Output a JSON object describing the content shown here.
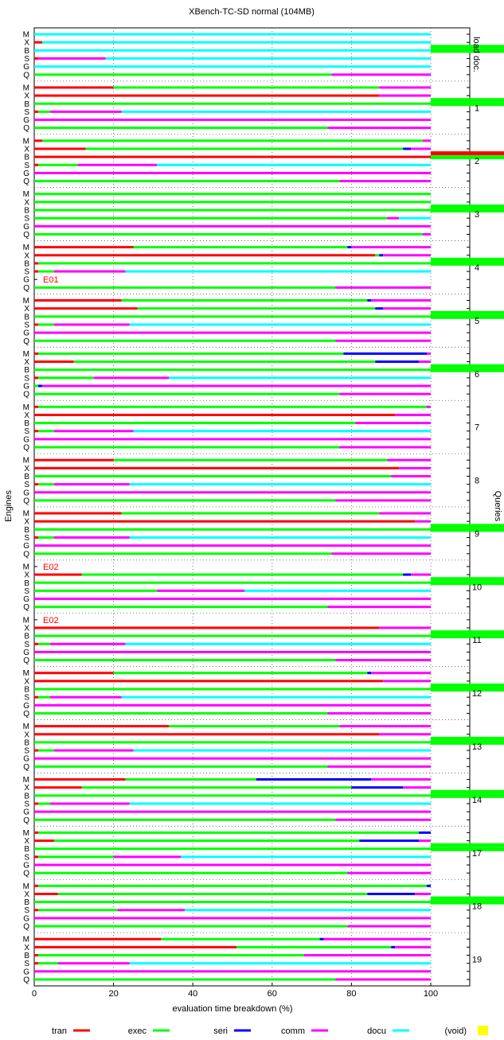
{
  "chart_data": {
    "type": "bar",
    "orientation": "horizontal",
    "stacked": true,
    "title": "XBench-TC-SD normal (104MB)",
    "xlabel": "evaluation time breakdown (%)",
    "ylabel_left": "Engines",
    "ylabel_right": "Queries",
    "xlim": [
      0,
      110
    ],
    "xticks": [
      0,
      20,
      40,
      60,
      80,
      100
    ],
    "grid": true,
    "legend_position": "bottom",
    "engines": [
      "M",
      "X",
      "B",
      "S",
      "G",
      "Q"
    ],
    "components": [
      {
        "name": "tran",
        "color": "#ff0000"
      },
      {
        "name": "exec",
        "color": "#00ff00"
      },
      {
        "name": "seri",
        "color": "#0000ff"
      },
      {
        "name": "comm",
        "color": "#ff00ff"
      },
      {
        "name": "docu",
        "color": "#00ffff"
      },
      {
        "name": "(void)",
        "color": "#ffff00"
      }
    ],
    "groups": [
      {
        "label": "load doc.",
        "rows": [
          [
            0,
            0,
            0,
            0,
            100
          ],
          [
            2,
            0,
            0,
            0,
            98
          ],
          [
            0,
            0,
            0,
            0,
            100
          ],
          [
            1,
            0,
            0,
            17,
            82
          ],
          [
            0,
            0,
            0,
            0,
            100
          ],
          [
            0,
            75,
            0,
            25,
            0
          ]
        ],
        "void": [
          [
            0,
            99,
            0,
            5
          ],
          [
            0,
            104,
            0,
            9
          ]
        ],
        "errors": []
      },
      {
        "label": "1",
        "rows": [
          [
            20,
            67,
            0,
            13,
            0
          ],
          [
            87,
            0,
            0,
            13,
            0
          ],
          [
            0,
            100,
            0,
            0,
            0
          ],
          [
            1,
            3,
            0,
            18,
            78
          ],
          [
            0,
            0,
            0,
            100,
            0
          ],
          [
            0,
            74,
            0,
            26,
            0
          ]
        ],
        "void": [
          [
            0,
            104,
            0,
            5
          ],
          [
            0,
            109,
            0,
            8
          ]
        ],
        "errors": []
      },
      {
        "label": "2",
        "rows": [
          [
            2,
            96,
            0,
            2,
            0
          ],
          [
            13,
            80,
            2,
            5,
            0
          ],
          [
            100,
            0,
            0,
            0,
            0
          ],
          [
            1,
            10,
            0,
            20,
            69
          ],
          [
            0,
            0,
            0,
            100,
            0
          ],
          [
            0,
            77,
            0,
            23,
            0
          ]
        ],
        "void": [
          [
            104,
            0,
            0,
            0
          ],
          [
            0,
            109,
            0,
            0
          ]
        ],
        "errors": []
      },
      {
        "label": "3",
        "rows": [
          [
            0,
            100,
            0,
            0,
            0
          ],
          [
            0,
            100,
            0,
            0,
            0
          ],
          [
            0,
            100,
            0,
            0,
            0
          ],
          [
            0,
            89,
            0,
            3,
            8
          ],
          [
            0,
            0,
            0,
            100,
            0
          ],
          [
            0,
            98,
            0,
            2,
            0
          ]
        ],
        "void": [
          [
            0,
            104,
            0,
            5
          ],
          [
            0,
            109,
            0,
            8
          ]
        ],
        "errors": []
      },
      {
        "label": "4",
        "rows": [
          [
            25,
            54,
            1,
            20,
            0
          ],
          [
            86,
            1,
            1,
            12,
            0
          ],
          [
            1,
            99,
            0,
            0,
            0
          ],
          [
            1,
            4,
            0,
            18,
            77
          ],
          [
            0,
            0,
            0,
            0,
            0
          ],
          [
            0,
            76,
            0,
            24,
            0
          ]
        ],
        "void": [
          [
            0,
            104,
            0,
            5
          ],
          [
            0,
            109,
            0,
            8
          ]
        ],
        "errors": [
          {
            "row": 4,
            "text": "E01"
          }
        ]
      },
      {
        "label": "5",
        "rows": [
          [
            22,
            62,
            1,
            15,
            0
          ],
          [
            26,
            60,
            2,
            12,
            0
          ],
          [
            0,
            100,
            0,
            0,
            0
          ],
          [
            1,
            4,
            0,
            19,
            76
          ],
          [
            0,
            0,
            0,
            100,
            0
          ],
          [
            0,
            76,
            0,
            24,
            0
          ]
        ],
        "void": [
          [
            0,
            104,
            0,
            5
          ],
          [
            0,
            109,
            0,
            8
          ]
        ],
        "errors": []
      },
      {
        "label": "6",
        "rows": [
          [
            1,
            77,
            21,
            1,
            0
          ],
          [
            10,
            76,
            11,
            3,
            0
          ],
          [
            0,
            100,
            0,
            0,
            0
          ],
          [
            1,
            14,
            0,
            19,
            66
          ],
          [
            0,
            1,
            1,
            98,
            0
          ],
          [
            0,
            77,
            0,
            23,
            0
          ]
        ],
        "void": [
          [
            0,
            104,
            0,
            5
          ],
          [
            0,
            109,
            0,
            8
          ]
        ],
        "errors": []
      },
      {
        "label": "7",
        "rows": [
          [
            1,
            98,
            0,
            1,
            0
          ],
          [
            91,
            0,
            0,
            9,
            0
          ],
          [
            0,
            81,
            0,
            19,
            0
          ],
          [
            1,
            4,
            0,
            20,
            75
          ],
          [
            0,
            0,
            0,
            100,
            0
          ],
          [
            0,
            77,
            0,
            23,
            0
          ]
        ],
        "void": [],
        "errors": []
      },
      {
        "label": "8",
        "rows": [
          [
            20,
            69,
            0,
            11,
            0
          ],
          [
            92,
            0,
            0,
            8,
            0
          ],
          [
            0,
            90,
            0,
            10,
            0
          ],
          [
            1,
            4,
            0,
            19,
            76
          ],
          [
            0,
            0,
            0,
            100,
            0
          ],
          [
            0,
            76,
            0,
            24,
            0
          ]
        ],
        "void": [],
        "errors": []
      },
      {
        "label": "9",
        "rows": [
          [
            22,
            65,
            0,
            13,
            0
          ],
          [
            96,
            0,
            0,
            4,
            0
          ],
          [
            0,
            100,
            0,
            0,
            0
          ],
          [
            1,
            4,
            0,
            19,
            76
          ],
          [
            0,
            0,
            0,
            100,
            0
          ],
          [
            0,
            75,
            0,
            25,
            0
          ]
        ],
        "void": [
          [
            0,
            104,
            0,
            5
          ],
          [
            0,
            109,
            0,
            8
          ]
        ],
        "errors": []
      },
      {
        "label": "10",
        "rows": [
          [
            0,
            0,
            0,
            0,
            0
          ],
          [
            12,
            81,
            2,
            5,
            0
          ],
          [
            0,
            100,
            0,
            0,
            0
          ],
          [
            0,
            31,
            0,
            22,
            47
          ],
          [
            0,
            0,
            0,
            100,
            0
          ],
          [
            0,
            74,
            0,
            26,
            0
          ]
        ],
        "void": [
          [
            0,
            104,
            0,
            5
          ],
          [
            0,
            109,
            0,
            8
          ]
        ],
        "errors": [
          {
            "row": 0,
            "text": "E02"
          }
        ]
      },
      {
        "label": "11",
        "rows": [
          [
            0,
            0,
            0,
            0,
            0
          ],
          [
            87,
            0,
            0,
            13,
            0
          ],
          [
            0,
            100,
            0,
            0,
            0
          ],
          [
            1,
            3,
            0,
            19,
            77
          ],
          [
            0,
            0,
            0,
            100,
            0
          ],
          [
            0,
            76,
            0,
            24,
            0
          ]
        ],
        "void": [
          [
            0,
            104,
            0,
            5
          ],
          [
            0,
            109,
            0,
            8
          ]
        ],
        "errors": [
          {
            "row": 0,
            "text": "E02"
          }
        ]
      },
      {
        "label": "12",
        "rows": [
          [
            20,
            64,
            1,
            15,
            0
          ],
          [
            88,
            0,
            0,
            12,
            0
          ],
          [
            0,
            100,
            0,
            0,
            0
          ],
          [
            1,
            3,
            0,
            18,
            78
          ],
          [
            0,
            0,
            0,
            100,
            0
          ],
          [
            0,
            74,
            0,
            26,
            0
          ]
        ],
        "void": [
          [
            0,
            104,
            0,
            5
          ],
          [
            0,
            109,
            0,
            8
          ]
        ],
        "errors": []
      },
      {
        "label": "13",
        "rows": [
          [
            34,
            43,
            0,
            23,
            0
          ],
          [
            87,
            0,
            0,
            13,
            0
          ],
          [
            0,
            100,
            0,
            0,
            0
          ],
          [
            1,
            4,
            0,
            20,
            75
          ],
          [
            0,
            0,
            0,
            100,
            0
          ],
          [
            0,
            74,
            0,
            26,
            0
          ]
        ],
        "void": [
          [
            0,
            104,
            0,
            5
          ],
          [
            0,
            109,
            0,
            8
          ]
        ],
        "errors": []
      },
      {
        "label": "14",
        "rows": [
          [
            23,
            33,
            29,
            15,
            0
          ],
          [
            12,
            68,
            13,
            7,
            0
          ],
          [
            0,
            100,
            0,
            0,
            0
          ],
          [
            1,
            3,
            0,
            20,
            76
          ],
          [
            0,
            0,
            0,
            100,
            0
          ],
          [
            0,
            76,
            0,
            24,
            0
          ]
        ],
        "void": [
          [
            0,
            104,
            0,
            5
          ],
          [
            0,
            109,
            0,
            8
          ]
        ],
        "errors": []
      },
      {
        "label": "17",
        "rows": [
          [
            1,
            96,
            3,
            0,
            0
          ],
          [
            5,
            77,
            15,
            3,
            0
          ],
          [
            0,
            100,
            0,
            0,
            0
          ],
          [
            1,
            19,
            0,
            17,
            63
          ],
          [
            0,
            0,
            0,
            100,
            0
          ],
          [
            0,
            79,
            0,
            21,
            0
          ]
        ],
        "void": [
          [
            0,
            104,
            0,
            5
          ],
          [
            0,
            109,
            0,
            8
          ]
        ],
        "errors": []
      },
      {
        "label": "18",
        "rows": [
          [
            1,
            98,
            1,
            0,
            0
          ],
          [
            6,
            78,
            12,
            4,
            0
          ],
          [
            0,
            100,
            0,
            0,
            0
          ],
          [
            1,
            20,
            0,
            17,
            62
          ],
          [
            0,
            0,
            0,
            100,
            0
          ],
          [
            0,
            79,
            0,
            21,
            0
          ]
        ],
        "void": [
          [
            0,
            104,
            0,
            5
          ],
          [
            0,
            109,
            0,
            8
          ]
        ],
        "errors": []
      },
      {
        "label": "19",
        "rows": [
          [
            32,
            40,
            1,
            27,
            0
          ],
          [
            51,
            39,
            1,
            9,
            0
          ],
          [
            1,
            67,
            0,
            32,
            0
          ],
          [
            1,
            5,
            0,
            18,
            76
          ],
          [
            0,
            0,
            0,
            100,
            0
          ],
          [
            0,
            76,
            0,
            24,
            0
          ]
        ],
        "void": [],
        "errors": []
      }
    ]
  }
}
